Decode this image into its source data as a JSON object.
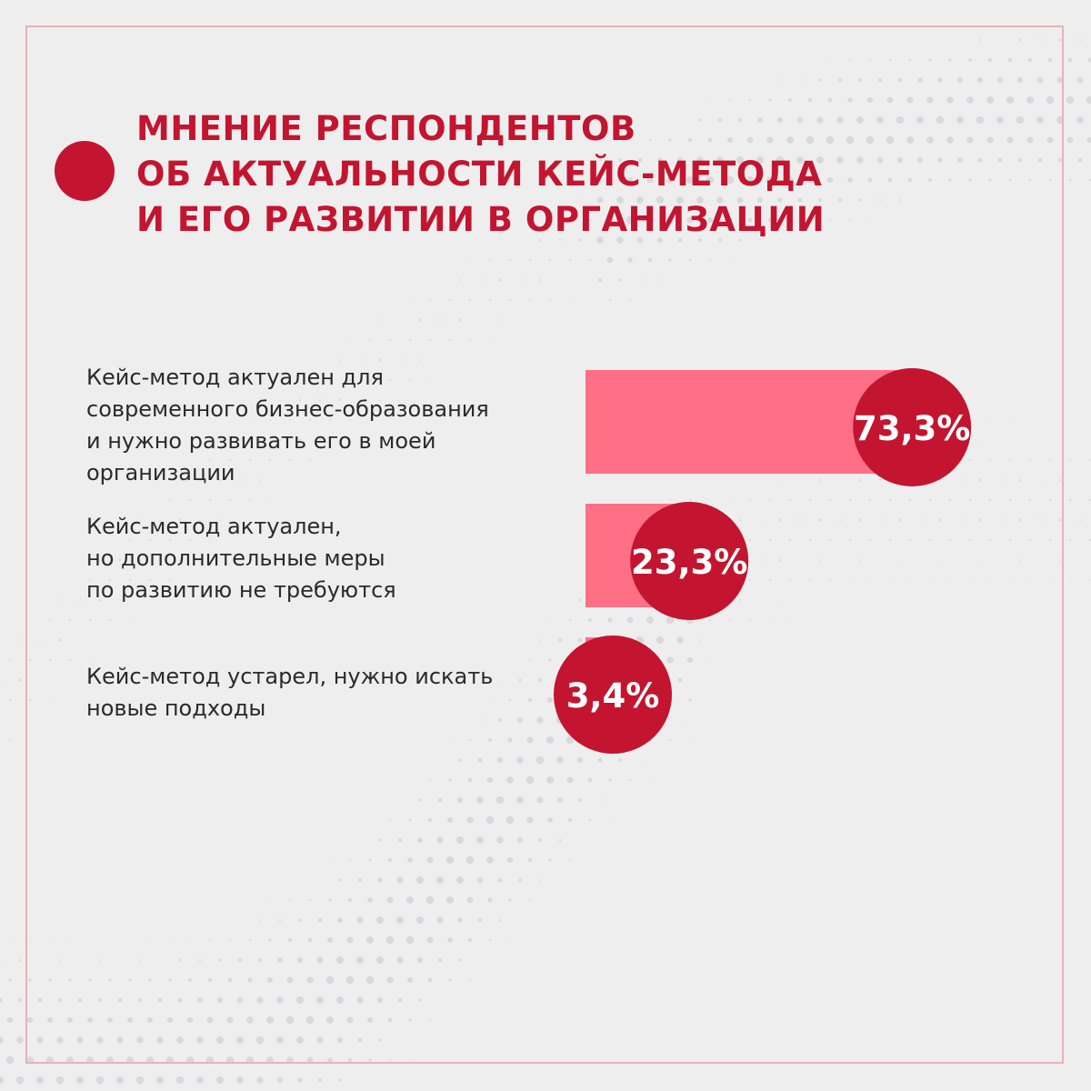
{
  "title": {
    "lines": [
      "МНЕНИЕ РЕСПОНДЕНТОВ",
      "ОБ АКТУАЛЬНОСТИ КЕЙС-МЕТОДА",
      "И ЕГО РАЗВИТИИ В ОРГАНИЗАЦИИ"
    ]
  },
  "colors": {
    "accent": "#c3152f",
    "bar": "#ff6f86",
    "background": "#efeeef",
    "frame": "#e6b2bd",
    "text": "#2a2a2a",
    "value_text": "#ffffff"
  },
  "chart_data": {
    "type": "bar",
    "orientation": "horizontal",
    "title": "МНЕНИЕ РЕСПОНДЕНТОВ ОБ АКТУАЛЬНОСТИ КЕЙС-МЕТОДА И ЕГО РАЗВИТИИ В ОРГАНИЗАЦИИ",
    "unit": "%",
    "xlim": [
      0,
      100
    ],
    "grid": false,
    "legend": "none",
    "categories": [
      {
        "lines": [
          "Кейс-метод актуален для",
          "современного бизнес-образования",
          "и нужно развивать его в моей",
          "организации"
        ],
        "value": 73.3,
        "value_label": "73,3%"
      },
      {
        "lines": [
          "Кейс-метод актуален,",
          "но дополнительные меры",
          "по развитию не требуются"
        ],
        "value": 23.3,
        "value_label": "23,3%"
      },
      {
        "lines": [
          "Кейс-метод устарел, нужно искать",
          "новые подходы"
        ],
        "value": 3.4,
        "value_label": "3,4%"
      }
    ]
  }
}
